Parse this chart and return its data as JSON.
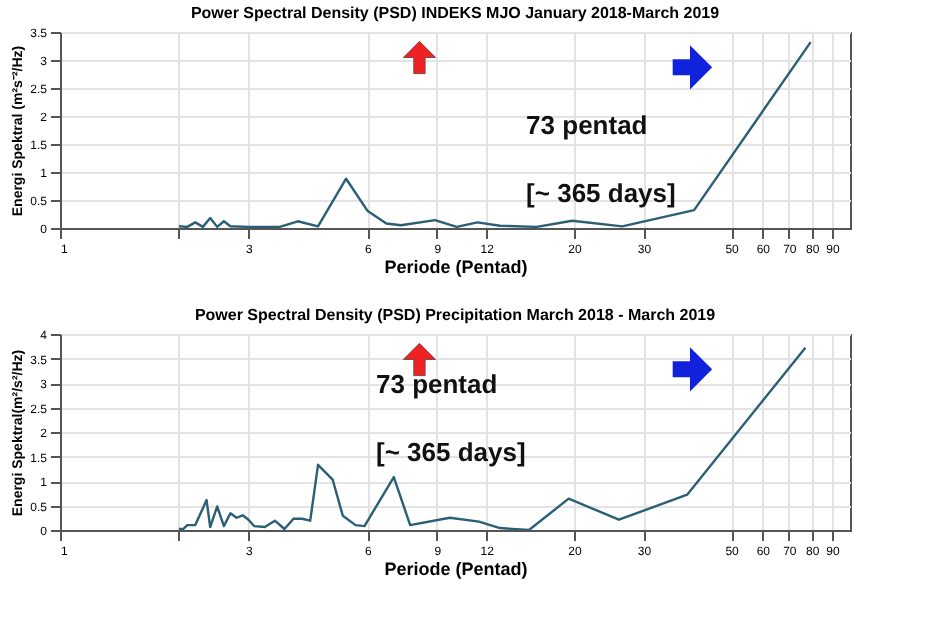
{
  "chart_data": [
    {
      "type": "line",
      "title": "Power Spectral Density (PSD) INDEKS MJO January 2018-March 2019",
      "xlabel": "Periode (Pentad)",
      "ylabel": "Energi Spektral (m²s⁻²/Hz)",
      "log": "x",
      "grid": true,
      "xlim": [
        1,
        100
      ],
      "ylim": [
        0,
        3.5
      ],
      "xticks": [
        1,
        {
          "value": 2,
          "label": null
        },
        3,
        6,
        9,
        12,
        20,
        30,
        50,
        60,
        70,
        80,
        90
      ],
      "yticks": [
        0,
        0.5,
        1,
        1.5,
        2,
        2.5,
        3,
        3.5
      ],
      "x": [
        2.0,
        2.1,
        2.2,
        2.3,
        2.4,
        2.5,
        2.6,
        2.7,
        3.0,
        3.6,
        4.0,
        4.5,
        5.3,
        6.0,
        6.7,
        7.3,
        8.9,
        10.1,
        11.4,
        13.0,
        16.1,
        19.8,
        26.5,
        40.3,
        79.5
      ],
      "series": [
        {
          "color": "#2b5f75",
          "values": [
            0.03,
            0.02,
            0.1,
            0.02,
            0.18,
            0.02,
            0.12,
            0.03,
            0.02,
            0.02,
            0.12,
            0.03,
            0.88,
            0.31,
            0.08,
            0.05,
            0.14,
            0.02,
            0.1,
            0.04,
            0.02,
            0.13,
            0.03,
            0.32,
            3.32
          ]
        }
      ],
      "annotations": [
        "73 pentad",
        "[~ 365 days]"
      ]
    },
    {
      "type": "line",
      "title": "Power Spectral Density (PSD) Precipitation March 2018 - March 2019",
      "xlabel": "Periode (Pentad)",
      "ylabel": "Energi Spektral(m²/s²/Hz)",
      "log": "x",
      "grid": true,
      "xlim": [
        1,
        100
      ],
      "ylim": [
        0,
        4
      ],
      "xticks": [
        1,
        {
          "value": 2,
          "label": null
        },
        3,
        6,
        9,
        12,
        20,
        30,
        50,
        60,
        70,
        80,
        90
      ],
      "yticks": [
        0,
        0.5,
        1,
        1.5,
        2,
        2.5,
        3,
        3.5,
        4
      ],
      "x": [
        2.0,
        2.05,
        2.1,
        2.2,
        2.35,
        2.4,
        2.5,
        2.6,
        2.7,
        2.8,
        2.9,
        3.0,
        3.1,
        3.3,
        3.5,
        3.7,
        3.9,
        4.1,
        4.3,
        4.5,
        4.9,
        5.2,
        5.6,
        5.9,
        7.0,
        7.7,
        9.7,
        11.5,
        13.0,
        15.4,
        19.4,
        26,
        38.7,
        77.1
      ],
      "series": [
        {
          "color": "#2b5f75",
          "values": [
            0.02,
            0.02,
            0.1,
            0.1,
            0.61,
            0.06,
            0.48,
            0.08,
            0.34,
            0.25,
            0.3,
            0.21,
            0.08,
            0.06,
            0.19,
            0.02,
            0.23,
            0.23,
            0.19,
            1.33,
            1.03,
            0.29,
            0.1,
            0.08,
            1.08,
            0.1,
            0.25,
            0.17,
            0.04,
            0.0,
            0.64,
            0.21,
            0.72,
            3.72
          ]
        }
      ],
      "annotations": [
        "73 pentad",
        "[~ 365 days]"
      ]
    }
  ]
}
